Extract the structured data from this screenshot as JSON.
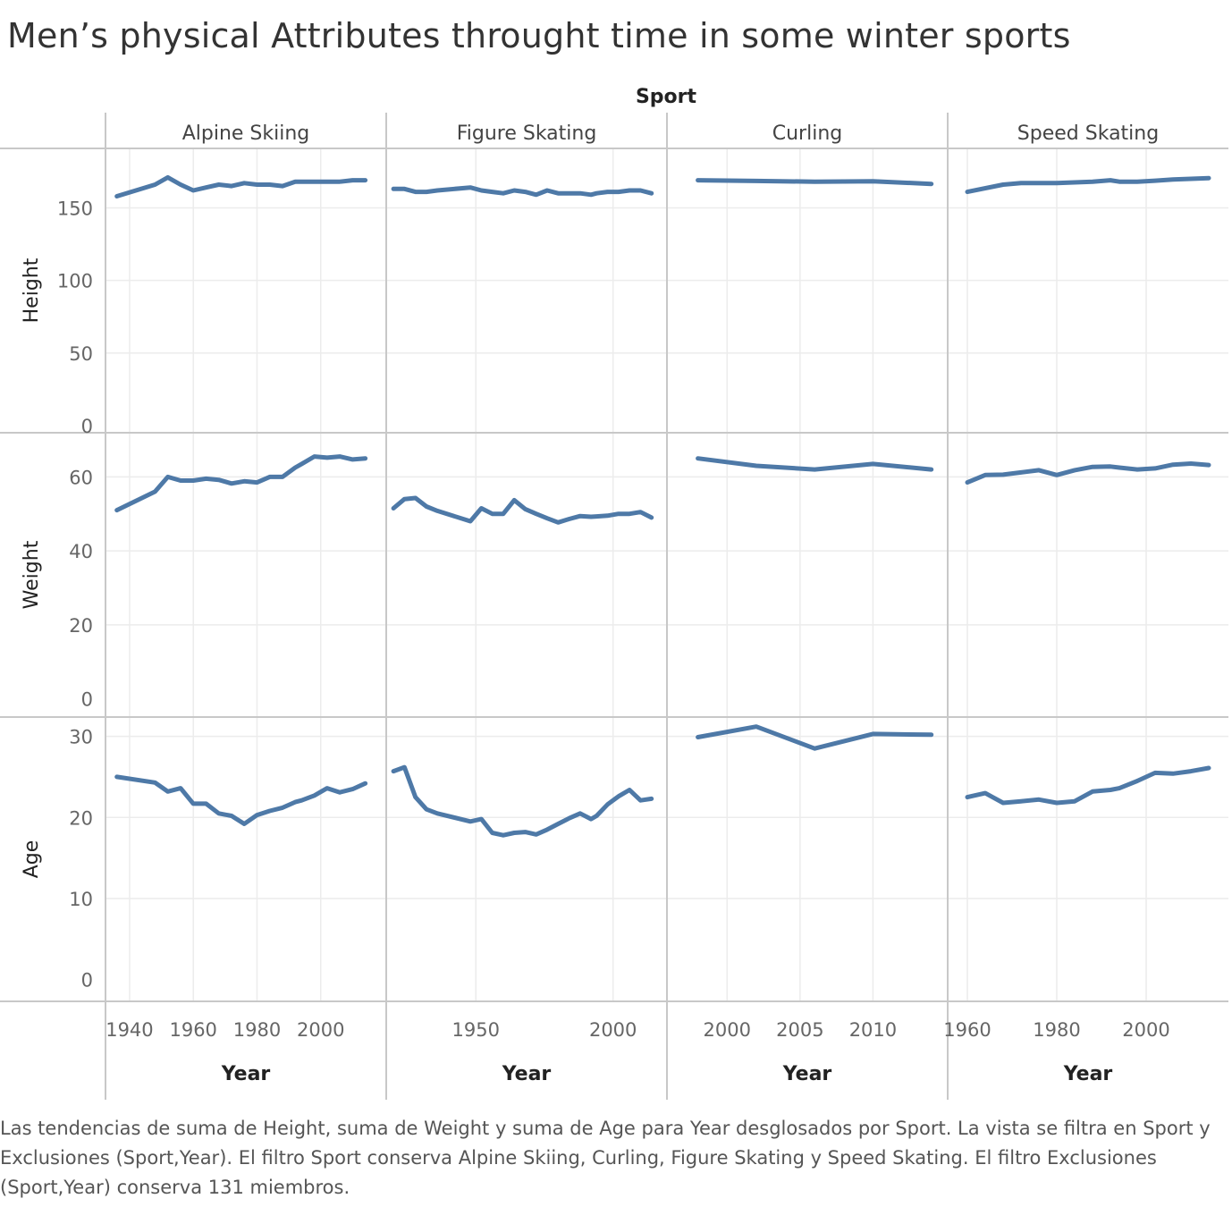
{
  "title": "Men’s physical Attributes throught time in some winter sports",
  "caption": "Las tendencias de suma de Height, suma de Weight y suma de Age para Year desglosados por Sport. La vista se filtra en Sport y Exclusiones (Sport,Year). El filtro Sport conserva Alpine Skiing, Curling, Figure Skating y Speed Skating. El filtro Exclusiones (Sport,Year) conserva 131 miembros.",
  "colors": {
    "line": "#4e79a7",
    "grid": "#ececec",
    "divider": "#c8c8c8"
  },
  "chart_data": {
    "type": "line",
    "column_header": "Sport",
    "x_title": "Year",
    "grid": true,
    "sports": [
      {
        "name": "Alpine Skiing",
        "xlim": [
          1933,
          2020
        ],
        "xticks": [
          1940,
          1960,
          1980,
          2000
        ],
        "height": [
          [
            1936,
            158
          ],
          [
            1948,
            166
          ],
          [
            1952,
            171
          ],
          [
            1956,
            166
          ],
          [
            1960,
            162
          ],
          [
            1964,
            164
          ],
          [
            1968,
            166
          ],
          [
            1972,
            165
          ],
          [
            1976,
            167
          ],
          [
            1980,
            166
          ],
          [
            1984,
            166
          ],
          [
            1988,
            165
          ],
          [
            1992,
            168
          ],
          [
            1994,
            168
          ],
          [
            1998,
            168
          ],
          [
            2002,
            168
          ],
          [
            2006,
            168
          ],
          [
            2010,
            169
          ],
          [
            2014,
            169
          ]
        ],
        "weight": [
          [
            1936,
            51
          ],
          [
            1948,
            56
          ],
          [
            1952,
            60
          ],
          [
            1956,
            59
          ],
          [
            1960,
            59
          ],
          [
            1964,
            59.5
          ],
          [
            1968,
            59.2
          ],
          [
            1972,
            58.2
          ],
          [
            1976,
            58.8
          ],
          [
            1980,
            58.5
          ],
          [
            1984,
            60
          ],
          [
            1988,
            60
          ],
          [
            1992,
            62.5
          ],
          [
            1994,
            63.5
          ],
          [
            1998,
            65.5
          ],
          [
            2002,
            65.2
          ],
          [
            2006,
            65.5
          ],
          [
            2010,
            64.7
          ],
          [
            2014,
            65
          ]
        ],
        "age": [
          [
            1936,
            25
          ],
          [
            1948,
            24.3
          ],
          [
            1952,
            23.2
          ],
          [
            1956,
            23.6
          ],
          [
            1960,
            21.7
          ],
          [
            1964,
            21.7
          ],
          [
            1968,
            20.5
          ],
          [
            1972,
            20.2
          ],
          [
            1976,
            19.2
          ],
          [
            1980,
            20.3
          ],
          [
            1984,
            20.8
          ],
          [
            1988,
            21.2
          ],
          [
            1992,
            21.9
          ],
          [
            1994,
            22.1
          ],
          [
            1998,
            22.7
          ],
          [
            2002,
            23.6
          ],
          [
            2006,
            23.1
          ],
          [
            2010,
            23.5
          ],
          [
            2014,
            24.2
          ]
        ]
      },
      {
        "name": "Figure Skating",
        "xlim": [
          1918,
          2019
        ],
        "xticks": [
          1950,
          2000
        ],
        "height": [
          [
            1920,
            163
          ],
          [
            1924,
            163
          ],
          [
            1928,
            161
          ],
          [
            1932,
            161
          ],
          [
            1936,
            162
          ],
          [
            1948,
            164
          ],
          [
            1952,
            162
          ],
          [
            1956,
            161
          ],
          [
            1960,
            160
          ],
          [
            1964,
            162
          ],
          [
            1968,
            161
          ],
          [
            1972,
            159
          ],
          [
            1976,
            162
          ],
          [
            1980,
            160
          ],
          [
            1984,
            160
          ],
          [
            1988,
            160
          ],
          [
            1992,
            159
          ],
          [
            1994,
            160
          ],
          [
            1998,
            161
          ],
          [
            2002,
            161
          ],
          [
            2006,
            162
          ],
          [
            2010,
            162
          ],
          [
            2014,
            160
          ]
        ],
        "weight": [
          [
            1920,
            51.5
          ],
          [
            1924,
            54
          ],
          [
            1928,
            54.3
          ],
          [
            1932,
            52
          ],
          [
            1936,
            50.8
          ],
          [
            1948,
            48
          ],
          [
            1952,
            51.5
          ],
          [
            1956,
            50
          ],
          [
            1960,
            50
          ],
          [
            1964,
            53.7
          ],
          [
            1968,
            51.3
          ],
          [
            1972,
            50
          ],
          [
            1976,
            48.8
          ],
          [
            1980,
            47.7
          ],
          [
            1984,
            48.6
          ],
          [
            1988,
            49.4
          ],
          [
            1992,
            49.2
          ],
          [
            1994,
            49.3
          ],
          [
            1998,
            49.5
          ],
          [
            2002,
            50
          ],
          [
            2006,
            50
          ],
          [
            2010,
            50.5
          ],
          [
            2014,
            49
          ]
        ],
        "age": [
          [
            1920,
            25.7
          ],
          [
            1924,
            26.2
          ],
          [
            1928,
            22.5
          ],
          [
            1932,
            21
          ],
          [
            1936,
            20.5
          ],
          [
            1948,
            19.5
          ],
          [
            1952,
            19.8
          ],
          [
            1956,
            18.1
          ],
          [
            1960,
            17.8
          ],
          [
            1964,
            18.1
          ],
          [
            1968,
            18.2
          ],
          [
            1972,
            17.9
          ],
          [
            1976,
            18.5
          ],
          [
            1980,
            19.2
          ],
          [
            1984,
            19.9
          ],
          [
            1988,
            20.5
          ],
          [
            1992,
            19.8
          ],
          [
            1994,
            20.2
          ],
          [
            1998,
            21.6
          ],
          [
            2002,
            22.6
          ],
          [
            2006,
            23.4
          ],
          [
            2010,
            22.1
          ],
          [
            2014,
            22.3
          ]
        ]
      },
      {
        "name": "Curling",
        "xlim": [
          1996,
          2015
        ],
        "xticks": [
          2000,
          2005,
          2010
        ],
        "height": [
          [
            1998,
            169
          ],
          [
            2002,
            168.5
          ],
          [
            2006,
            168
          ],
          [
            2010,
            168.3
          ],
          [
            2014,
            166.5
          ]
        ],
        "weight": [
          [
            1998,
            65
          ],
          [
            2002,
            63
          ],
          [
            2006,
            62
          ],
          [
            2010,
            63.5
          ],
          [
            2014,
            62
          ]
        ],
        "age": [
          [
            1998,
            29.9
          ],
          [
            2002,
            31.2
          ],
          [
            2006,
            28.5
          ],
          [
            2010,
            30.3
          ],
          [
            2014,
            30.2
          ]
        ]
      },
      {
        "name": "Speed Skating",
        "xlim": [
          1956,
          2018
        ],
        "xticks": [
          1960,
          1980,
          2000
        ],
        "height": [
          [
            1960,
            161
          ],
          [
            1968,
            166
          ],
          [
            1972,
            167
          ],
          [
            1976,
            167
          ],
          [
            1980,
            167
          ],
          [
            1984,
            167.5
          ],
          [
            1988,
            168
          ],
          [
            1992,
            169
          ],
          [
            1994,
            168
          ],
          [
            1998,
            168
          ],
          [
            2002,
            168.7
          ],
          [
            2006,
            169.5
          ],
          [
            2010,
            170
          ],
          [
            2014,
            170.5
          ]
        ],
        "weight": [
          [
            1960,
            58.5
          ],
          [
            1964,
            60.5
          ],
          [
            1968,
            60.6
          ],
          [
            1972,
            61.2
          ],
          [
            1976,
            61.8
          ],
          [
            1980,
            60.5
          ],
          [
            1984,
            61.8
          ],
          [
            1988,
            62.7
          ],
          [
            1992,
            62.8
          ],
          [
            1994,
            62.5
          ],
          [
            1998,
            62
          ],
          [
            2002,
            62.3
          ],
          [
            2006,
            63.3
          ],
          [
            2010,
            63.6
          ],
          [
            2014,
            63.2
          ]
        ],
        "age": [
          [
            1960,
            22.5
          ],
          [
            1964,
            23
          ],
          [
            1968,
            21.8
          ],
          [
            1972,
            22
          ],
          [
            1976,
            22.2
          ],
          [
            1980,
            21.8
          ],
          [
            1984,
            22
          ],
          [
            1988,
            23.2
          ],
          [
            1992,
            23.4
          ],
          [
            1994,
            23.6
          ],
          [
            1998,
            24.5
          ],
          [
            2002,
            25.5
          ],
          [
            2006,
            25.4
          ],
          [
            2010,
            25.7
          ],
          [
            2014,
            26.1
          ]
        ]
      }
    ],
    "measures": [
      {
        "key": "height",
        "label": "Height",
        "ylim": [
          0,
          186
        ],
        "ticks": [
          0,
          50,
          100,
          150
        ]
      },
      {
        "key": "weight",
        "label": "Weight",
        "ylim": [
          -3,
          70
        ],
        "ticks": [
          0,
          20,
          40,
          60
        ]
      },
      {
        "key": "age",
        "label": "Age",
        "ylim": [
          -1.8,
          31.5
        ],
        "ticks": [
          0,
          10,
          20,
          30
        ]
      }
    ]
  }
}
